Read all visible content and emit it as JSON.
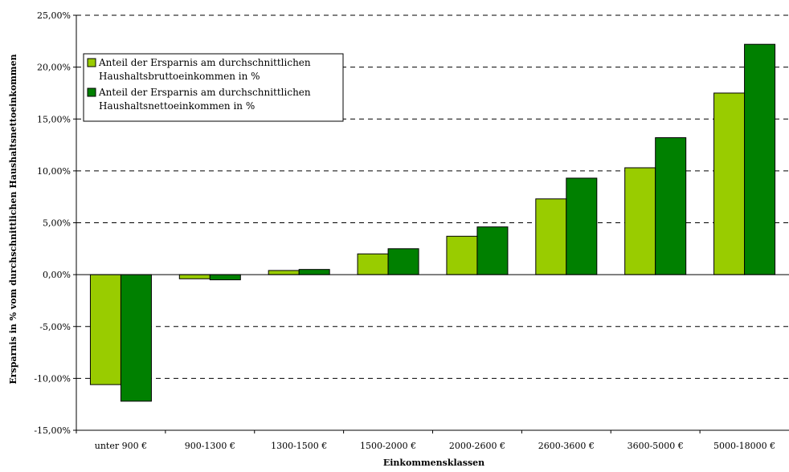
{
  "chart_data": {
    "type": "bar",
    "title": "",
    "xlabel": "Einkommensklassen",
    "ylabel": "Ersparnis in % vom durchschnittlichen Haushaltsnettoeinkommen",
    "categories": [
      "unter 900 €",
      "900-1300 €",
      "1300-1500 €",
      "1500-2000 €",
      "2000-2600 €",
      "2600-3600 €",
      "3600-5000 €",
      "5000-18000 €"
    ],
    "series": [
      {
        "name_lines": [
          "Anteil der Ersparnis am durchschnittlichen",
          "Haushaltsbruttoeinkommen in %"
        ],
        "color": "#99cc00",
        "values": [
          -10.6,
          -0.4,
          0.4,
          2.0,
          3.7,
          7.3,
          10.3,
          17.5
        ]
      },
      {
        "name_lines": [
          "Anteil der Ersparnis am durchschnittlichen",
          "Haushaltsnettoeinkommen in %"
        ],
        "color": "#008000",
        "values": [
          -12.2,
          -0.5,
          0.5,
          2.5,
          4.6,
          9.3,
          13.2,
          22.2
        ]
      }
    ],
    "ylim": [
      -15,
      25
    ],
    "yticks": [
      25,
      20,
      15,
      10,
      5,
      0,
      -5,
      -10,
      -15
    ],
    "ytick_labels": [
      "25,00%",
      "20,00%",
      "15,00%",
      "10,00%",
      "5,00%",
      "0,00%",
      "-5,00%",
      "-10,00%",
      "-15,00%"
    ],
    "grid": true,
    "legend_position": "top-left"
  }
}
